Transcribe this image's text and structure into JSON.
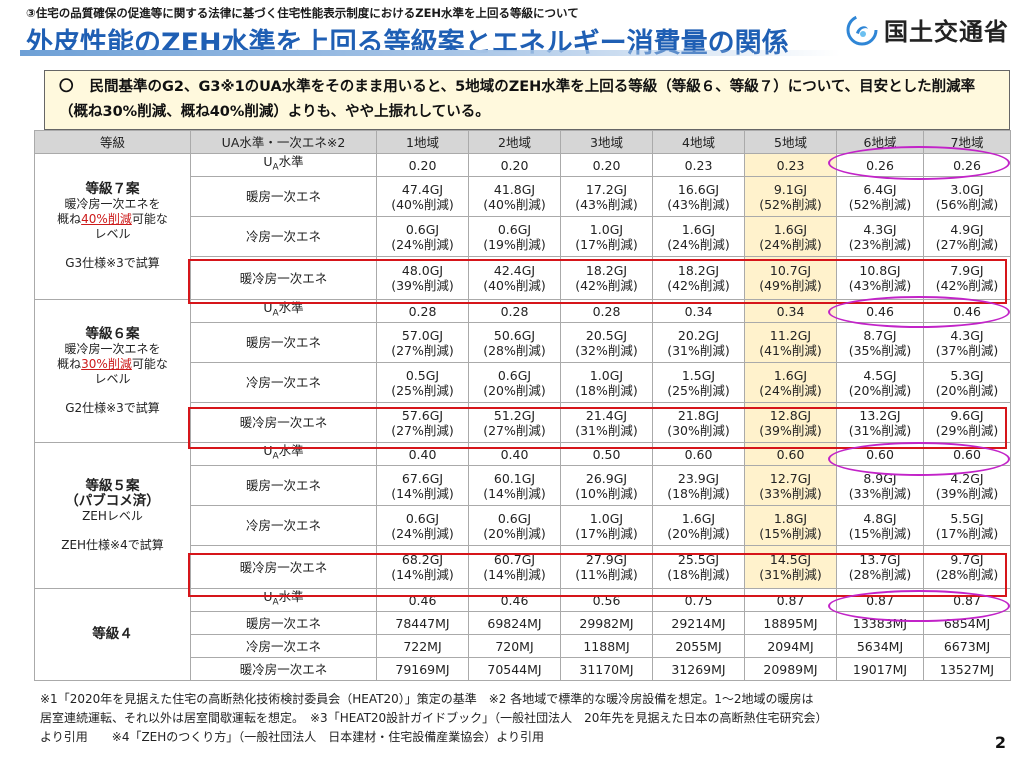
{
  "header": {
    "subtitle": "③住宅の品質確保の促進等に関する法律に基づく住宅性能表示制度におけるZEH水準を上回る等級について",
    "title": "外皮性能のZEH水準を上回る等級案とエネルギー消費量の関係",
    "logo_text": "国土交通省"
  },
  "note": {
    "bullet": "〇",
    "text": "民間基準のG2、G3※1のUA水準をそのまま用いると、5地域のZEH水準を上回る等級（等級６、等級７）について、目安とした削減率（概ね30%削減、概ね40%削減）よりも、やや上振れしている。"
  },
  "table": {
    "headers": [
      "等級",
      "UA水準・一次エネ※2",
      "1地域",
      "2地域",
      "3地域",
      "4地域",
      "5地域",
      "6地域",
      "7地域"
    ],
    "groups": [
      {
        "grade": {
          "title": "等級７案",
          "line1": "暖冷房一次エネを",
          "pre": "概ね",
          "red": "40%削減",
          "post": "可能な",
          "line3": "レベル",
          "spec": "G3仕様※3で試算"
        },
        "rows": [
          {
            "label": "UA水準",
            "cells": [
              [
                "0.20"
              ],
              [
                "0.20"
              ],
              [
                "0.20"
              ],
              [
                "0.23"
              ],
              [
                "0.23"
              ],
              [
                "0.26"
              ],
              [
                "0.26"
              ]
            ]
          },
          {
            "label": "暖房一次エネ",
            "cells": [
              [
                "47.4GJ",
                "(40%削減)"
              ],
              [
                "41.8GJ",
                "(40%削減)"
              ],
              [
                "17.2GJ",
                "(43%削減)"
              ],
              [
                "16.6GJ",
                "(43%削減)"
              ],
              [
                "9.1GJ",
                "(52%削減)"
              ],
              [
                "6.4GJ",
                "(52%削減)"
              ],
              [
                "3.0GJ",
                "(56%削減)"
              ]
            ]
          },
          {
            "label": "冷房一次エネ",
            "cells": [
              [
                "0.6GJ",
                "(24%削減)"
              ],
              [
                "0.6GJ",
                "(19%削減)"
              ],
              [
                "1.0GJ",
                "(17%削減)"
              ],
              [
                "1.6GJ",
                "(24%削減)"
              ],
              [
                "1.6GJ",
                "(24%削減)"
              ],
              [
                "4.3GJ",
                "(23%削減)"
              ],
              [
                "4.9GJ",
                "(27%削減)"
              ]
            ]
          },
          {
            "label": "暖冷房一次エネ",
            "cells": [
              [
                "48.0GJ",
                "(39%削減)"
              ],
              [
                "42.4GJ",
                "(40%削減)"
              ],
              [
                "18.2GJ",
                "(42%削減)"
              ],
              [
                "18.2GJ",
                "(42%削減)"
              ],
              [
                "10.7GJ",
                "(49%削減)"
              ],
              [
                "10.8GJ",
                "(43%削減)"
              ],
              [
                "7.9GJ",
                "(42%削減)"
              ]
            ]
          }
        ]
      },
      {
        "grade": {
          "title": "等級６案",
          "line1": "暖冷房一次エネを",
          "pre": "概ね",
          "red": "30%削減",
          "post": "可能な",
          "line3": "レベル",
          "spec": "G2仕様※3で試算"
        },
        "rows": [
          {
            "label": "UA水準",
            "cells": [
              [
                "0.28"
              ],
              [
                "0.28"
              ],
              [
                "0.28"
              ],
              [
                "0.34"
              ],
              [
                "0.34"
              ],
              [
                "0.46"
              ],
              [
                "0.46"
              ]
            ]
          },
          {
            "label": "暖房一次エネ",
            "cells": [
              [
                "57.0GJ",
                "(27%削減)"
              ],
              [
                "50.6GJ",
                "(28%削減)"
              ],
              [
                "20.5GJ",
                "(32%削減)"
              ],
              [
                "20.2GJ",
                "(31%削減)"
              ],
              [
                "11.2GJ",
                "(41%削減)"
              ],
              [
                "8.7GJ",
                "(35%削減)"
              ],
              [
                "4.3GJ",
                "(37%削減)"
              ]
            ]
          },
          {
            "label": "冷房一次エネ",
            "cells": [
              [
                "0.5GJ",
                "(25%削減)"
              ],
              [
                "0.6GJ",
                "(20%削減)"
              ],
              [
                "1.0GJ",
                "(18%削減)"
              ],
              [
                "1.5GJ",
                "(25%削減)"
              ],
              [
                "1.6GJ",
                "(24%削減)"
              ],
              [
                "4.5GJ",
                "(20%削減)"
              ],
              [
                "5.3GJ",
                "(20%削減)"
              ]
            ]
          },
          {
            "label": "暖冷房一次エネ",
            "cells": [
              [
                "57.6GJ",
                "(27%削減)"
              ],
              [
                "51.2GJ",
                "(27%削減)"
              ],
              [
                "21.4GJ",
                "(31%削減)"
              ],
              [
                "21.8GJ",
                "(30%削減)"
              ],
              [
                "12.8GJ",
                "(39%削減)"
              ],
              [
                "13.2GJ",
                "(31%削減)"
              ],
              [
                "9.6GJ",
                "(29%削減)"
              ]
            ]
          }
        ]
      },
      {
        "grade": {
          "title": "等級５案",
          "title2": "（パブコメ済）",
          "line1": "ZEHレベル",
          "spec": "ZEH仕様※4で試算"
        },
        "rows": [
          {
            "label": "UA水準",
            "cells": [
              [
                "0.40"
              ],
              [
                "0.40"
              ],
              [
                "0.50"
              ],
              [
                "0.60"
              ],
              [
                "0.60"
              ],
              [
                "0.60"
              ],
              [
                "0.60"
              ]
            ]
          },
          {
            "label": "暖房一次エネ",
            "cells": [
              [
                "67.6GJ",
                "(14%削減)"
              ],
              [
                "60.1GJ",
                "(14%削減)"
              ],
              [
                "26.9GJ",
                "(10%削減)"
              ],
              [
                "23.9GJ",
                "(18%削減)"
              ],
              [
                "12.7GJ",
                "(33%削減)"
              ],
              [
                "8.9GJ",
                "(33%削減)"
              ],
              [
                "4.2GJ",
                "(39%削減)"
              ]
            ]
          },
          {
            "label": "冷房一次エネ",
            "cells": [
              [
                "0.6GJ",
                "(24%削減)"
              ],
              [
                "0.6GJ",
                "(20%削減)"
              ],
              [
                "1.0GJ",
                "(17%削減)"
              ],
              [
                "1.6GJ",
                "(20%削減)"
              ],
              [
                "1.8GJ",
                "(15%削減)"
              ],
              [
                "4.8GJ",
                "(15%削減)"
              ],
              [
                "5.5GJ",
                "(17%削減)"
              ]
            ]
          },
          {
            "label": "暖冷房一次エネ",
            "cells": [
              [
                "68.2GJ",
                "(14%削減)"
              ],
              [
                "60.7GJ",
                "(14%削減)"
              ],
              [
                "27.9GJ",
                "(11%削減)"
              ],
              [
                "25.5GJ",
                "(18%削減)"
              ],
              [
                "14.5GJ",
                "(31%削減)"
              ],
              [
                "13.7GJ",
                "(28%削減)"
              ],
              [
                "9.7GJ",
                "(28%削減)"
              ]
            ]
          }
        ]
      },
      {
        "grade": {
          "title": "等級４"
        },
        "rows": [
          {
            "label": "UA水準",
            "cells": [
              [
                "0.46"
              ],
              [
                "0.46"
              ],
              [
                "0.56"
              ],
              [
                "0.75"
              ],
              [
                "0.87"
              ],
              [
                "0.87"
              ],
              [
                "0.87"
              ]
            ]
          },
          {
            "label": "暖房一次エネ",
            "cells": [
              [
                "78447MJ"
              ],
              [
                "69824MJ"
              ],
              [
                "29982MJ"
              ],
              [
                "29214MJ"
              ],
              [
                "18895MJ"
              ],
              [
                "13383MJ"
              ],
              [
                "6854MJ"
              ]
            ]
          },
          {
            "label": "冷房一次エネ",
            "cells": [
              [
                "722MJ"
              ],
              [
                "720MJ"
              ],
              [
                "1188MJ"
              ],
              [
                "2055MJ"
              ],
              [
                "2094MJ"
              ],
              [
                "5634MJ"
              ],
              [
                "6673MJ"
              ]
            ]
          },
          {
            "label": "暖冷房一次エネ",
            "cells": [
              [
                "79169MJ"
              ],
              [
                "70544MJ"
              ],
              [
                "31170MJ"
              ],
              [
                "31269MJ"
              ],
              [
                "20989MJ"
              ],
              [
                "19017MJ"
              ],
              [
                "13527MJ"
              ]
            ]
          }
        ]
      }
    ]
  },
  "footnotes": {
    "line1": "※1「2020年を見据えた住宅の高断熱化技術検討委員会（HEAT20）」策定の基準　※2 各地域で標準的な暖冷房設備を想定。1～2地域の暖房は",
    "line2": "居室連続運転、それ以外は居室間歇運転を想定。　※3「HEAT20設計ガイドブック」（一般社団法人　20年先を見据えた日本の高断熱住宅研究会）",
    "line3": "より引用　　※4「ZEHのつくり方」（一般社団法人　日本建材・住宅設備産業協会）より引用"
  },
  "page_number": "2",
  "colors": {
    "title_blue": "#1f5fb4",
    "zone5_highlight": "#fff2cc",
    "red_frame": "#d6151a",
    "magenta_ellipse": "#c223c8",
    "note_background": "#fff9dd",
    "header_gray": "#d6d6d6"
  }
}
